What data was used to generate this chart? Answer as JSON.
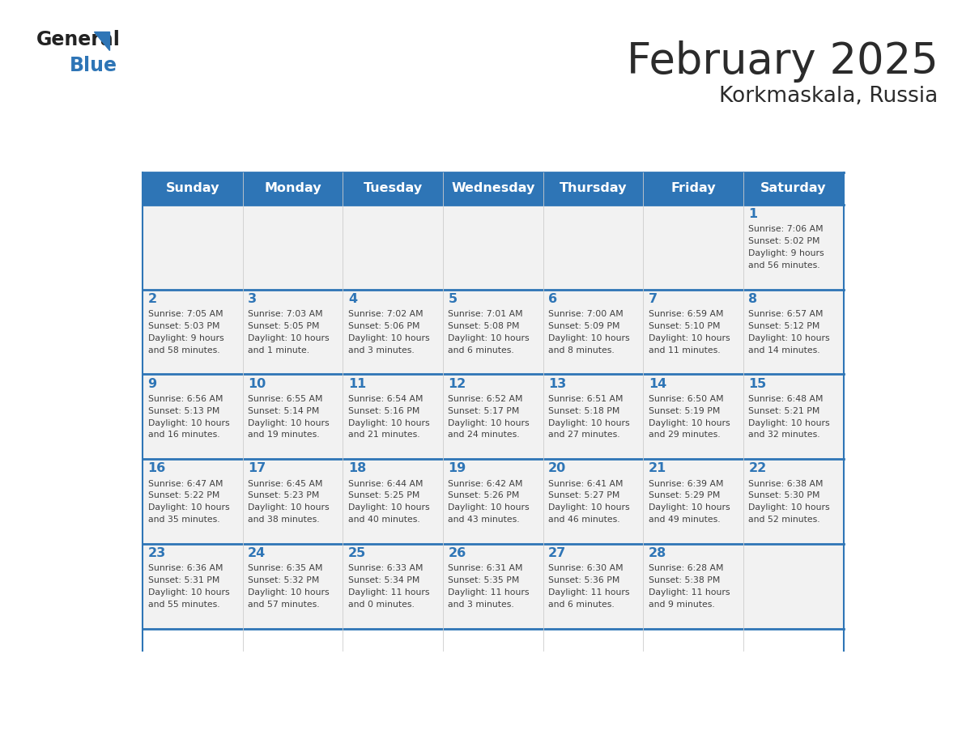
{
  "title": "February 2025",
  "subtitle": "Korkmaskala, Russia",
  "days_of_week": [
    "Sunday",
    "Monday",
    "Tuesday",
    "Wednesday",
    "Thursday",
    "Friday",
    "Saturday"
  ],
  "header_bg": "#2E75B6",
  "header_text": "#FFFFFF",
  "cell_bg_light": "#F2F2F2",
  "border_color": "#2E75B6",
  "day_number_color": "#2E75B6",
  "text_color": "#404040",
  "title_color": "#2B2B2B",
  "calendar_data": [
    [
      null,
      null,
      null,
      null,
      null,
      null,
      {
        "day": 1,
        "sunrise": "7:06 AM",
        "sunset": "5:02 PM",
        "daylight": "9 hours and 56 minutes."
      }
    ],
    [
      {
        "day": 2,
        "sunrise": "7:05 AM",
        "sunset": "5:03 PM",
        "daylight": "9 hours and 58 minutes."
      },
      {
        "day": 3,
        "sunrise": "7:03 AM",
        "sunset": "5:05 PM",
        "daylight": "10 hours and 1 minute."
      },
      {
        "day": 4,
        "sunrise": "7:02 AM",
        "sunset": "5:06 PM",
        "daylight": "10 hours and 3 minutes."
      },
      {
        "day": 5,
        "sunrise": "7:01 AM",
        "sunset": "5:08 PM",
        "daylight": "10 hours and 6 minutes."
      },
      {
        "day": 6,
        "sunrise": "7:00 AM",
        "sunset": "5:09 PM",
        "daylight": "10 hours and 8 minutes."
      },
      {
        "day": 7,
        "sunrise": "6:59 AM",
        "sunset": "5:10 PM",
        "daylight": "10 hours and 11 minutes."
      },
      {
        "day": 8,
        "sunrise": "6:57 AM",
        "sunset": "5:12 PM",
        "daylight": "10 hours and 14 minutes."
      }
    ],
    [
      {
        "day": 9,
        "sunrise": "6:56 AM",
        "sunset": "5:13 PM",
        "daylight": "10 hours and 16 minutes."
      },
      {
        "day": 10,
        "sunrise": "6:55 AM",
        "sunset": "5:14 PM",
        "daylight": "10 hours and 19 minutes."
      },
      {
        "day": 11,
        "sunrise": "6:54 AM",
        "sunset": "5:16 PM",
        "daylight": "10 hours and 21 minutes."
      },
      {
        "day": 12,
        "sunrise": "6:52 AM",
        "sunset": "5:17 PM",
        "daylight": "10 hours and 24 minutes."
      },
      {
        "day": 13,
        "sunrise": "6:51 AM",
        "sunset": "5:18 PM",
        "daylight": "10 hours and 27 minutes."
      },
      {
        "day": 14,
        "sunrise": "6:50 AM",
        "sunset": "5:19 PM",
        "daylight": "10 hours and 29 minutes."
      },
      {
        "day": 15,
        "sunrise": "6:48 AM",
        "sunset": "5:21 PM",
        "daylight": "10 hours and 32 minutes."
      }
    ],
    [
      {
        "day": 16,
        "sunrise": "6:47 AM",
        "sunset": "5:22 PM",
        "daylight": "10 hours and 35 minutes."
      },
      {
        "day": 17,
        "sunrise": "6:45 AM",
        "sunset": "5:23 PM",
        "daylight": "10 hours and 38 minutes."
      },
      {
        "day": 18,
        "sunrise": "6:44 AM",
        "sunset": "5:25 PM",
        "daylight": "10 hours and 40 minutes."
      },
      {
        "day": 19,
        "sunrise": "6:42 AM",
        "sunset": "5:26 PM",
        "daylight": "10 hours and 43 minutes."
      },
      {
        "day": 20,
        "sunrise": "6:41 AM",
        "sunset": "5:27 PM",
        "daylight": "10 hours and 46 minutes."
      },
      {
        "day": 21,
        "sunrise": "6:39 AM",
        "sunset": "5:29 PM",
        "daylight": "10 hours and 49 minutes."
      },
      {
        "day": 22,
        "sunrise": "6:38 AM",
        "sunset": "5:30 PM",
        "daylight": "10 hours and 52 minutes."
      }
    ],
    [
      {
        "day": 23,
        "sunrise": "6:36 AM",
        "sunset": "5:31 PM",
        "daylight": "10 hours and 55 minutes."
      },
      {
        "day": 24,
        "sunrise": "6:35 AM",
        "sunset": "5:32 PM",
        "daylight": "10 hours and 57 minutes."
      },
      {
        "day": 25,
        "sunrise": "6:33 AM",
        "sunset": "5:34 PM",
        "daylight": "11 hours and 0 minutes."
      },
      {
        "day": 26,
        "sunrise": "6:31 AM",
        "sunset": "5:35 PM",
        "daylight": "11 hours and 3 minutes."
      },
      {
        "day": 27,
        "sunrise": "6:30 AM",
        "sunset": "5:36 PM",
        "daylight": "11 hours and 6 minutes."
      },
      {
        "day": 28,
        "sunrise": "6:28 AM",
        "sunset": "5:38 PM",
        "daylight": "11 hours and 9 minutes."
      },
      null
    ]
  ]
}
